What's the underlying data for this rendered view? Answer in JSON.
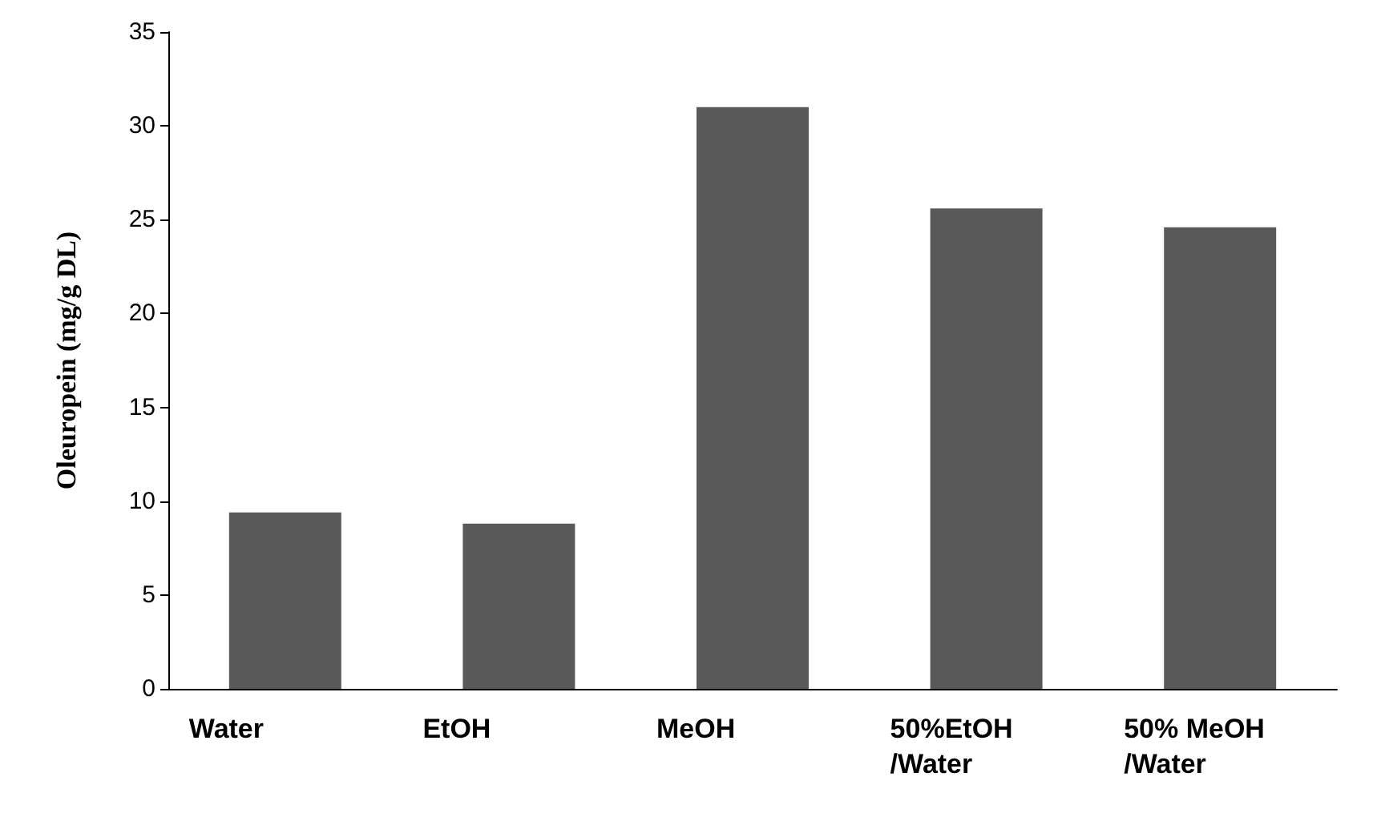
{
  "chart_data": {
    "type": "bar",
    "ylabel": "Oleuropein (mg/g DL)",
    "categories": [
      "Water",
      "EtOH",
      "MeOH",
      "50%EtOH\n/Water",
      "50% MeOH\n/Water"
    ],
    "values": [
      9.4,
      8.8,
      31,
      25.6,
      24.6
    ],
    "color": "#595959",
    "ylim": [
      0,
      35
    ],
    "yticks": [
      0,
      5,
      10,
      15,
      20,
      25,
      30,
      35
    ],
    "grid": false
  }
}
